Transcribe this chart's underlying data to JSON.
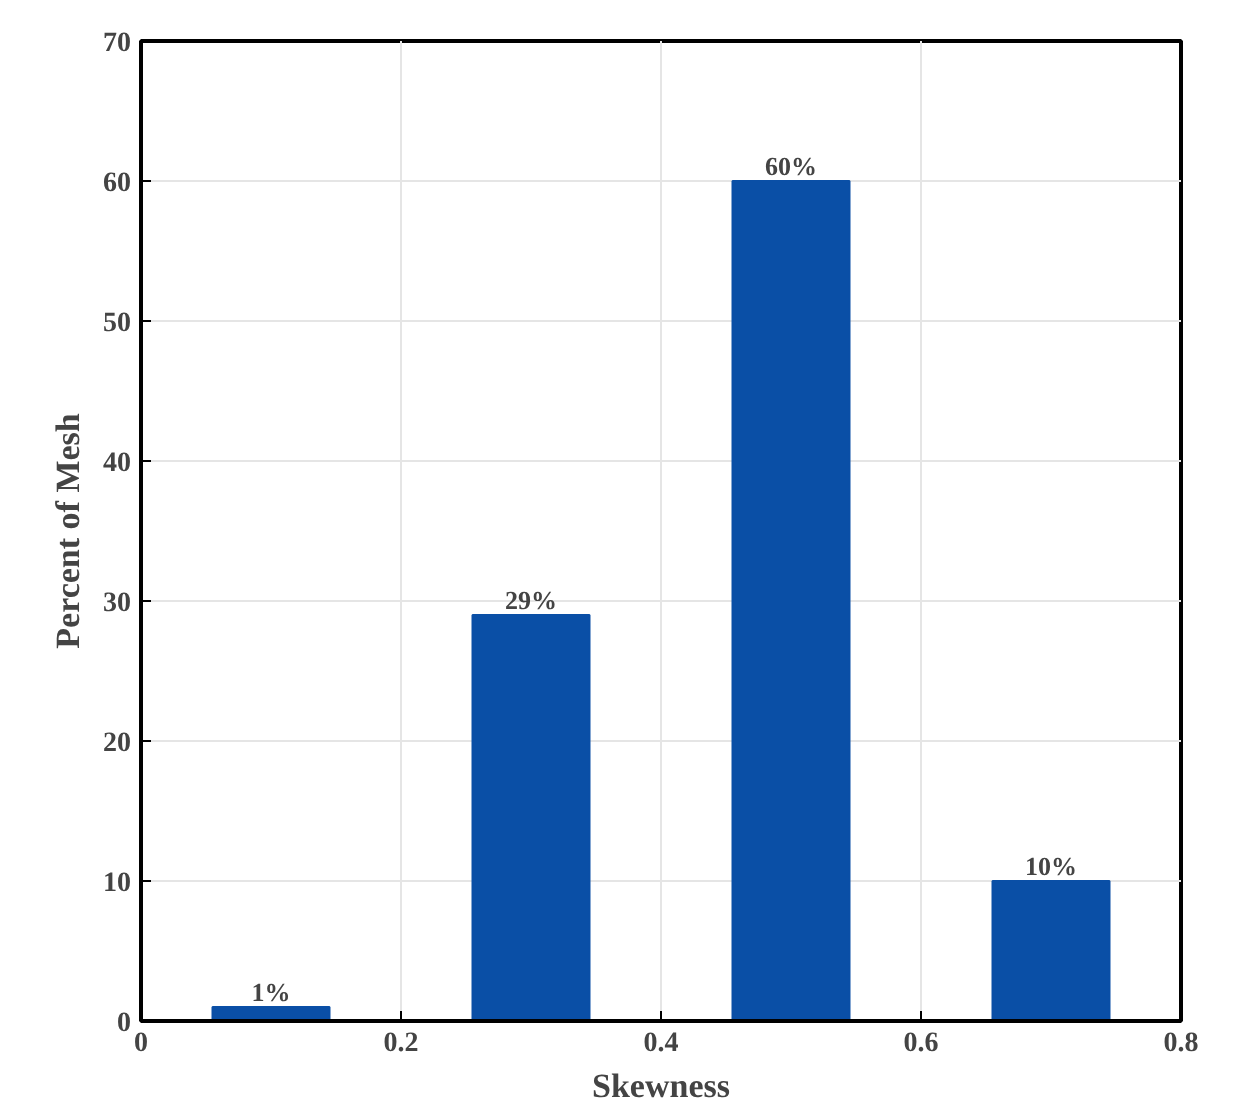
{
  "chart_data": {
    "type": "bar",
    "xlabel": "Skewness",
    "ylabel": "Percent of Mesh",
    "x": [
      0.1,
      0.3,
      0.5,
      0.7
    ],
    "values": [
      1,
      29,
      60,
      10
    ],
    "color": "#0a4fa6",
    "value_labels": [
      "1%",
      "29%",
      "60%",
      "10%"
    ],
    "xlim": [
      0,
      0.8
    ],
    "xticks": [
      0,
      0.2,
      0.4,
      0.6,
      0.8
    ],
    "ylim": [
      0,
      70
    ],
    "yticks": [
      0,
      10,
      20,
      30,
      40,
      50,
      60,
      70
    ],
    "grid": true
  }
}
